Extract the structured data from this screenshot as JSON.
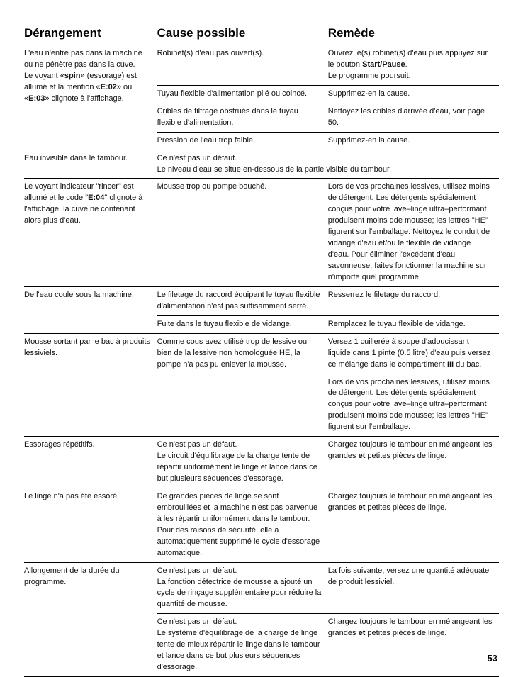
{
  "page_number": "53",
  "headers": {
    "c0": "Dérangement",
    "c1": "Cause possible",
    "c2": "Remède"
  },
  "r1": {
    "c0a": "L'eau n'entre pas dans la machine ou ne pénètre pas dans la cuve.",
    "c0b": "Le voyant «",
    "c0c": "spin",
    "c0d": "» (essorage) est allumé et la mention «",
    "c0e": "E:02",
    "c0f": "» ou «",
    "c0g": "E:03",
    "c0h": "» clignote à l'affichage.",
    "c1": "Robinet(s) d'eau pas ouvert(s).",
    "c2a": "Ouvrez le(s) robinet(s) d'eau puis appuyez sur le bouton ",
    "c2b": "Start/Pause",
    "c2c": ".",
    "c2d": "Le programme poursuit."
  },
  "r2": {
    "c1": "Tuyau flexible d'alimentation plié ou coincé.",
    "c2": "Supprimez-en la cause."
  },
  "r3": {
    "c1": "Cribles de filtrage obstrués dans le tuyau flexible d'alimentation.",
    "c2": "Nettoyez les cribles d'arrivée d'eau, voir page 50."
  },
  "r4": {
    "c1": "Pression de l'eau trop faible.",
    "c2": "Supprimez-en la cause."
  },
  "r5": {
    "c0": "Eau invisible dans le tambour.",
    "c1a": "Ce n'est pas un défaut.",
    "c1b": "Le niveau d'eau se situe en-dessous de la partie visible du tambour."
  },
  "r6": {
    "c0a": "Le voyant indicateur \"rincer\" est allumé et le code \"",
    "c0b": "E:04",
    "c0c": "\" clignote à l'affichage, la cuve ne contenant alors plus d'eau.",
    "c1": "Mousse trop ou pompe bouché.",
    "c2": "Lors de vos prochaines lessives, utilisez moins de détergent.  Les détergents spécialement conçus pour votre lave–linge ultra–performant produisent moins dde mousse; les lettres \"HE\" figurent sur l'emballage. Nettoyez le conduit de vidange d'eau et/ou le flexible de vidange d'eau. Pour éliminer l'excédent d'eau savonneuse, faites fonctionner la machine sur n'importe quel programme."
  },
  "r7": {
    "c0": "De l'eau coule sous la machine.",
    "c1": "Le filetage du raccord équipant le tuyau flexible d'alimentation n'est pas suffisamment serré.",
    "c2": "Resserrez le filetage du raccord."
  },
  "r8": {
    "c1": "Fuite dans le tuyau flexible de vidange.",
    "c2": "Remplacez le tuyau flexible de vidange."
  },
  "r9": {
    "c0": "Mousse sortant par le bac à produits lessiviels.",
    "c1": "Comme cous avez utilisé trop de lessive ou bien de la lessive non homologuée HE, la pompe n'a pas pu enlever la mousse.",
    "c2a": "Versez 1 cuillerée à soupe d'adoucissant liquide dans 1 pinte (0.5 litre) d'eau puis versez ce mélange dans le compartiment ",
    "c2b": "III",
    "c2c": " du bac."
  },
  "r10": {
    "c2": "Lors de vos prochaines lessives, utilisez moins de détergent.  Les détergents spécialement conçus pour votre lave–linge ultra–performant produisent moins dde mousse; les lettres \"HE\" figurent sur l'emballage."
  },
  "r11": {
    "c0": "Essorages répétitifs.",
    "c1a": "Ce n'est pas un défaut.",
    "c1b": "Le circuit d'équilibrage de la charge tente de répartir uniformément le linge et lance dans ce but plusieurs séquences d'essorage.",
    "c2a": "Chargez toujours le tambour en mélangeant les grandes ",
    "c2b": "et",
    "c2c": " petites pièces de linge."
  },
  "r12": {
    "c0": "Le linge n'a pas été essoré.",
    "c1": "De grandes pièces de linge se sont embrouillées et la machine n'est pas parvenue à les répartir uniformément dans le tambour. Pour des raisons de sécurité, elle a automatiquement supprimé le cycle d'essorage automatique.",
    "c2a": "Chargez toujours le tambour en mélangeant les grandes ",
    "c2b": "et",
    "c2c": " petites pièces de linge."
  },
  "r13": {
    "c0": "Allongement de la durée du programme.",
    "c1a": "Ce n'est pas un défaut.",
    "c1b": "La fonction détectrice de mousse a ajouté un cycle de rinçage supplémentaire pour réduire la quantité de mousse.",
    "c2": "La fois suivante, versez une quantité adéquate de produit lessiviel."
  },
  "r14": {
    "c1a": "Ce n'est pas un défaut.",
    "c1b": "Le système d'équilibrage de la charge de linge tente de mieux répartir le linge dans le tambour et lance dans ce but plusieurs séquences d'essorage.",
    "c2a": "Chargez toujours le tambour en mélangeant les grandes ",
    "c2b": "et",
    "c2c": " petites pièces de linge."
  }
}
